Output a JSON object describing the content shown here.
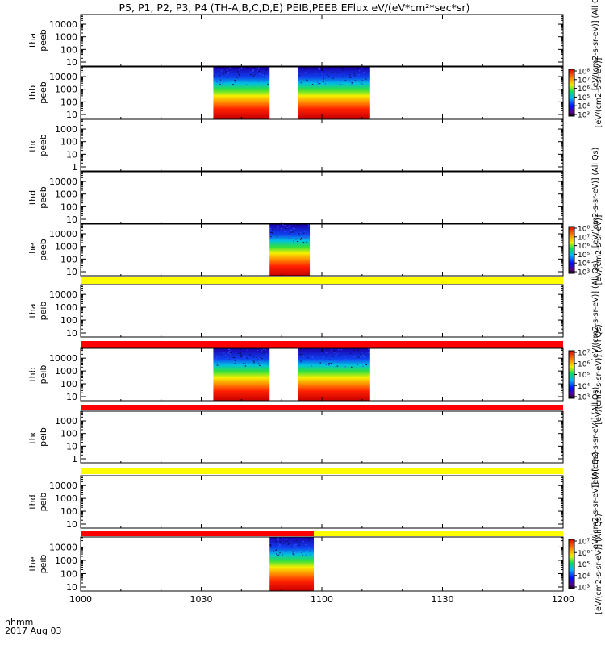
{
  "title": "P5, P1, P2, P3, P4 (TH-A,B,C,D,E) PEIB,PEEB EFlux eV/(eV*cm²*sec*sr)",
  "footer": {
    "time_label": "hhmm",
    "date_label": "2017 Aug 03"
  },
  "colors": {
    "spectrum_low": "#1a00a8",
    "spectrum_high": "#c80000",
    "yellow_bar": "#ffff00",
    "red_bar": "#ff0000"
  },
  "chart_data": {
    "type": "heatmap",
    "x_tick_labels": [
      "1000",
      "1030",
      "1100",
      "1130",
      "1200"
    ],
    "x_ticks_hhmm": [
      1000,
      1030,
      1100,
      1130,
      1200
    ],
    "xlim_hhmm": [
      1000,
      1200
    ],
    "panels": [
      {
        "id": "tha-peeb",
        "ylabel": [
          "tha",
          "peeb"
        ],
        "ytick_labels": [
          "10",
          "100",
          "1000",
          "10000"
        ],
        "colorbar": null,
        "right_label": "[eV/(cm2-s-sr-eV)] (All Qs)",
        "data_blocks": [],
        "flag_bar": null
      },
      {
        "id": "thb-peeb",
        "ylabel": [
          "thb",
          "peeb"
        ],
        "ytick_labels": [
          "10",
          "100",
          "1000",
          "10000"
        ],
        "colorbar": {
          "tick_labels": [
            "10³",
            "10⁴",
            "10⁵",
            "10⁶",
            "10⁷",
            "10⁸"
          ]
        },
        "right_label": "[eV/(cm2-s-sr-eV)]",
        "data_blocks": [
          {
            "start_hhmm": 1033,
            "end_hhmm": 1047
          },
          {
            "start_hhmm": 1054,
            "end_hhmm": 1112
          }
        ],
        "flag_bar": null
      },
      {
        "id": "thc-peeb",
        "ylabel": [
          "thc",
          "peeb"
        ],
        "ytick_labels": [
          "1",
          "10",
          "100",
          "1000"
        ],
        "colorbar": null,
        "right_label": "",
        "data_blocks": [],
        "flag_bar": null
      },
      {
        "id": "thd-peeb",
        "ylabel": [
          "thd",
          "peeb"
        ],
        "ytick_labels": [
          "10",
          "100",
          "1000",
          "10000"
        ],
        "colorbar": null,
        "right_label": "[eV/(cm2-s-sr-eV)] (All Qs)",
        "data_blocks": [],
        "flag_bar": null
      },
      {
        "id": "the-peeb",
        "ylabel": [
          "the",
          "peeb"
        ],
        "ytick_labels": [
          "10",
          "100",
          "1000",
          "10000"
        ],
        "colorbar": {
          "tick_labels": [
            "10³",
            "10⁴",
            "10⁵",
            "10⁶",
            "10⁷",
            "10⁸"
          ]
        },
        "right_label": "[eV/(cm2-s-sr-eV)]",
        "data_blocks": [
          {
            "start_hhmm": 1047,
            "end_hhmm": 1057
          }
        ],
        "flag_bar": null
      },
      {
        "id": "tha-peib",
        "ylabel": [
          "tha",
          "peib"
        ],
        "ytick_labels": [
          "10",
          "100",
          "1000",
          "10000"
        ],
        "colorbar": null,
        "right_label": "[eV/(cm2-s-sr-eV)] (All Qs)",
        "data_blocks": [],
        "flag_bar": [
          {
            "start_hhmm": 1000,
            "end_hhmm": 1200,
            "color": "yellow"
          }
        ]
      },
      {
        "id": "thb-peib",
        "ylabel": [
          "thb",
          "peib"
        ],
        "ytick_labels": [
          "10",
          "100",
          "1000",
          "10000"
        ],
        "colorbar": {
          "tick_labels": [
            "10³",
            "10⁴",
            "10⁵",
            "10⁶",
            "10⁷"
          ]
        },
        "right_label": "[eV/(cm2-s-sr-eV)] (All Qs)",
        "data_blocks": [
          {
            "start_hhmm": 1033,
            "end_hhmm": 1047
          },
          {
            "start_hhmm": 1054,
            "end_hhmm": 1112
          }
        ],
        "flag_bar": [
          {
            "start_hhmm": 1000,
            "end_hhmm": 1200,
            "color": "red"
          }
        ]
      },
      {
        "id": "thc-peib",
        "ylabel": [
          "thc",
          "peib"
        ],
        "ytick_labels": [
          "1",
          "10",
          "100",
          "1000"
        ],
        "colorbar": null,
        "right_label": "[eV/(cm2-s-sr-eV)] (All Qs)",
        "data_blocks": [],
        "flag_bar": [
          {
            "start_hhmm": 1000,
            "end_hhmm": 1200,
            "color": "red"
          }
        ]
      },
      {
        "id": "thd-peib",
        "ylabel": [
          "thd",
          "peib"
        ],
        "ytick_labels": [
          "10",
          "100",
          "1000",
          "10000"
        ],
        "colorbar": null,
        "right_label": "[eV/(cm2-s-sr-eV)] (All Qs)",
        "data_blocks": [],
        "flag_bar": [
          {
            "start_hhmm": 1000,
            "end_hhmm": 1200,
            "color": "yellow"
          }
        ]
      },
      {
        "id": "the-peib",
        "ylabel": [
          "the",
          "peib"
        ],
        "ytick_labels": [
          "10",
          "100",
          "1000",
          "10000"
        ],
        "colorbar": {
          "tick_labels": [
            "10³",
            "10⁴",
            "10⁵",
            "10⁶",
            "10⁷"
          ]
        },
        "right_label": "[eV/(cm2-s-sr-eV)] (All Qs)",
        "data_blocks": [
          {
            "start_hhmm": 1047,
            "end_hhmm": 1058
          }
        ],
        "flag_bar": [
          {
            "start_hhmm": 1000,
            "end_hhmm": 1058,
            "color": "red"
          },
          {
            "start_hhmm": 1058,
            "end_hhmm": 1200,
            "color": "yellow"
          }
        ]
      }
    ]
  }
}
